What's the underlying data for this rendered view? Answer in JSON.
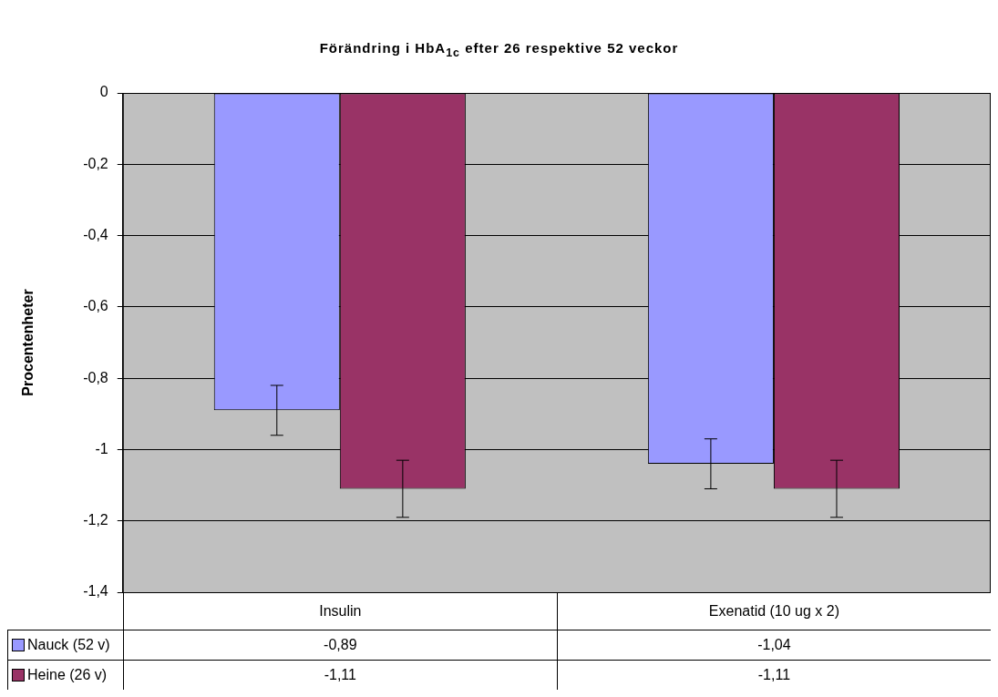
{
  "chart_data": {
    "type": "bar",
    "title": "Förändring i HbA$_{1c}$ efter 26 respektive 52 veckor",
    "ylabel": "Procentenheter",
    "categories": [
      "Insulin",
      "Exenatid (10 ug x 2)"
    ],
    "series": [
      {
        "name": "Nauck (52 v)",
        "color": "#9999ff",
        "values": [
          -0.89,
          -1.04
        ],
        "errors": [
          0.07,
          0.07
        ],
        "value_labels": [
          "-0,89",
          "-1,04"
        ]
      },
      {
        "name": "Heine (26 v)",
        "color": "#993366",
        "values": [
          -1.11,
          -1.11
        ],
        "errors": [
          0.08,
          0.08
        ],
        "value_labels": [
          "-1,11",
          "-1,11"
        ]
      }
    ],
    "ylim": [
      -1.4,
      0
    ],
    "yticks": [
      0,
      {
        "value": -0.2,
        "label": "-0,2"
      },
      {
        "value": -0.4,
        "label": "-0,4"
      },
      {
        "value": -0.6,
        "label": "-0,6"
      },
      {
        "value": -0.8,
        "label": "-0,8"
      },
      -1,
      {
        "value": -1.2,
        "label": "-1,2"
      },
      {
        "value": -1.4,
        "label": "-1,4"
      }
    ],
    "grid": "y",
    "legend": "bottom"
  }
}
